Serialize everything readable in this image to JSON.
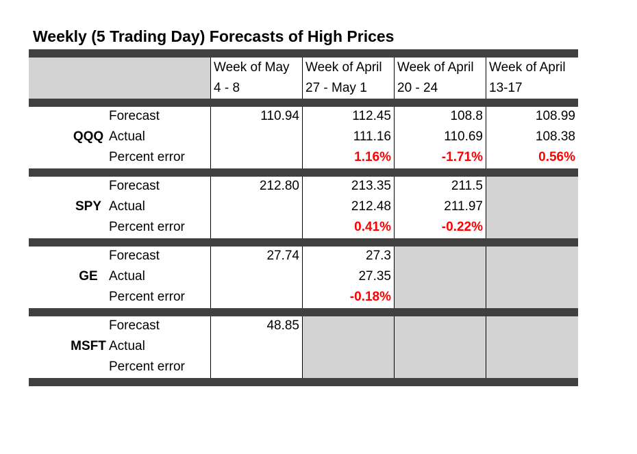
{
  "title": "Weekly (5 Trading Day) Forecasts of High Prices",
  "columns": [
    {
      "line1": "Week of May",
      "line2": "4 - 8"
    },
    {
      "line1": "Week of April",
      "line2": "27 - May 1"
    },
    {
      "line1": "Week of April",
      "line2": "20 - 24"
    },
    {
      "line1": "Week of April",
      "line2": "13-17"
    }
  ],
  "row_labels": {
    "forecast": "Forecast",
    "actual": "Actual",
    "error": "Percent error"
  },
  "groups": [
    {
      "ticker": "QQQ",
      "forecast": [
        "110.94",
        "112.45",
        "108.8",
        "108.99"
      ],
      "actual": [
        "",
        "111.16",
        "110.69",
        "108.38"
      ],
      "error": [
        "",
        "1.16%",
        "-1.71%",
        "0.56%"
      ],
      "filled_columns": 4
    },
    {
      "ticker": "SPY",
      "forecast": [
        "212.80",
        "213.35",
        "211.5",
        ""
      ],
      "actual": [
        "",
        "212.48",
        "211.97",
        ""
      ],
      "error": [
        "",
        "0.41%",
        "-0.22%",
        ""
      ],
      "filled_columns": 3
    },
    {
      "ticker": "GE",
      "forecast": [
        "27.74",
        "27.3",
        "",
        ""
      ],
      "actual": [
        "",
        "27.35",
        "",
        ""
      ],
      "error": [
        "",
        "-0.18%",
        "",
        ""
      ],
      "filled_columns": 2
    },
    {
      "ticker": "MSFT",
      "forecast": [
        "48.85",
        "",
        "",
        ""
      ],
      "actual": [
        "",
        "",
        "",
        ""
      ],
      "error": [
        "",
        "",
        "",
        ""
      ],
      "filled_columns": 1
    }
  ],
  "colors": {
    "bar": "#404040",
    "empty_cell": "#d3d3d3",
    "error_text": "#ff0000"
  }
}
